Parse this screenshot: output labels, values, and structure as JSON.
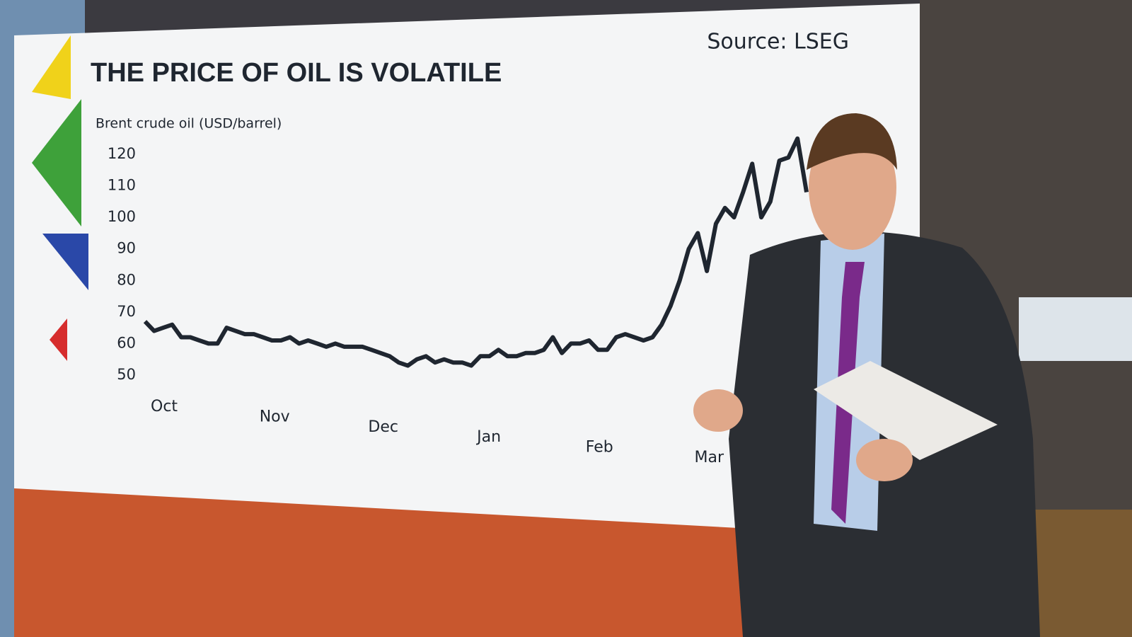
{
  "chart_data": {
    "type": "line",
    "title": "THE PRICE OF OIL IS VOLATILE",
    "source": "Source: LSEG",
    "y_label": "Brent crude oil (USD/barrel)",
    "categories": [
      "Oct",
      null,
      null,
      null,
      null,
      null,
      null,
      null,
      null,
      null,
      null,
      null,
      "Nov",
      null,
      null,
      null,
      null,
      null,
      null,
      null,
      null,
      null,
      null,
      null,
      "Dec",
      null,
      null,
      null,
      null,
      null,
      null,
      null,
      null,
      null,
      null,
      null,
      "Jan",
      null,
      null,
      null,
      null,
      null,
      null,
      null,
      null,
      null,
      null,
      null,
      "Feb",
      null,
      null,
      null,
      null,
      null,
      null,
      null,
      null,
      null,
      null,
      null,
      "Mar",
      null,
      null,
      null,
      null,
      null,
      null,
      null,
      null,
      null,
      null,
      null,
      null,
      null
    ],
    "values": [
      67,
      64,
      65,
      66,
      62,
      62,
      61,
      60,
      60,
      65,
      64,
      63,
      63,
      62,
      61,
      61,
      62,
      60,
      61,
      60,
      59,
      60,
      59,
      59,
      59,
      58,
      57,
      56,
      54,
      53,
      55,
      56,
      54,
      55,
      54,
      54,
      53,
      56,
      56,
      58,
      56,
      56,
      57,
      57,
      58,
      62,
      57,
      60,
      60,
      61,
      58,
      58,
      62,
      63,
      62,
      61,
      62,
      66,
      72,
      80,
      90,
      95,
      83,
      98,
      103,
      100,
      108,
      117,
      100,
      105,
      118,
      119,
      125,
      108
    ],
    "color": "#1f2630",
    "ylim": [
      50,
      120
    ],
    "yticks": [
      50,
      60,
      70,
      80,
      90,
      100,
      110,
      120
    ]
  }
}
